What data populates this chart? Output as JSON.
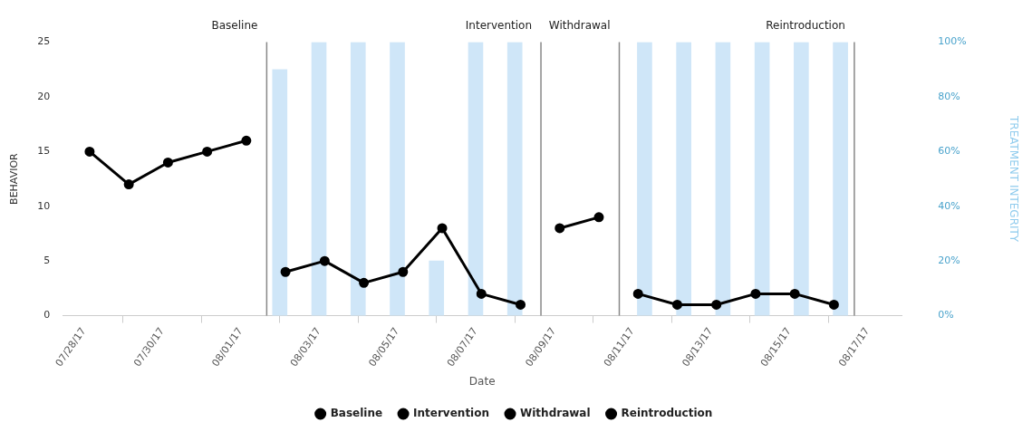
{
  "chart_data": {
    "type": "line",
    "xlabel": "Date",
    "ylabel": "BEHAVIOR",
    "y2label": "TREATMENT INTEGRITY",
    "series": [
      {
        "type": "bar",
        "axis": "y2",
        "color": "#cfe6f8",
        "x": [
          "--08-02",
          "--08-03",
          "--08-04",
          "--08-05",
          "--08-06",
          "--08-07",
          "--08-08",
          "--08-11T07:30",
          "--08-12T07:30",
          "--08-13T07:30",
          "--08-14T07:30",
          "--08-15T07:30",
          "--08-16T07:30"
        ],
        "values": [
          90,
          100,
          100,
          100,
          20,
          100,
          100,
          100,
          100,
          100,
          100,
          100,
          100
        ]
      },
      {
        "name": "Baseline",
        "color": "#000000",
        "x": [
          "--07-28T03:30",
          "--07-29T03:30",
          "--07-30T03:30",
          "--07-31T03:30",
          "--08-01T03:30"
        ],
        "values": [
          15,
          12,
          14,
          15,
          16
        ]
      },
      {
        "name": "Intervention",
        "color": "#000000",
        "x": [
          "--08-02T03:30",
          "--08-03T03:30",
          "--08-04T03:30",
          "--08-05T03:30",
          "--08-06T03:30",
          "--08-07T03:30",
          "--08-08T03:30"
        ],
        "values": [
          4,
          5,
          3,
          4,
          8,
          2,
          1
        ]
      },
      {
        "name": "Withdrawal",
        "color": "#000000",
        "x": [
          "--08-09T03:30",
          "--08-10T03:30"
        ],
        "values": [
          8,
          9
        ]
      },
      {
        "name": "Reintroduction",
        "color": "#000000",
        "x": [
          "--08-11T03:30",
          "--08-12T03:30",
          "--08-13T03:30",
          "--08-14T03:30",
          "--08-15T03:30",
          "--08-16T03:30"
        ],
        "values": [
          2,
          1,
          1,
          2,
          2,
          1
        ]
      }
    ],
    "xlim": [
      "--07-27T11:00",
      "--08-17T21:00"
    ],
    "xticks": [
      {
        "value": "--07-28",
        "label": "07/28/17"
      },
      {
        "value": "--07-30",
        "label": "07/30/17"
      },
      {
        "value": "--08-01",
        "label": "08/01/17"
      },
      {
        "value": "--08-03",
        "label": "08/03/17"
      },
      {
        "value": "--08-05",
        "label": "08/05/17"
      },
      {
        "value": "--08-07",
        "label": "08/07/17"
      },
      {
        "value": "--08-09",
        "label": "08/09/17"
      },
      {
        "value": "--08-11",
        "label": "08/11/17"
      },
      {
        "value": "--08-13",
        "label": "08/13/17"
      },
      {
        "value": "--08-15",
        "label": "08/15/17"
      },
      {
        "value": "--08-17",
        "label": "08/17/17"
      }
    ],
    "ylim": [
      0,
      25
    ],
    "yticks": [
      0,
      5,
      10,
      15,
      20,
      25
    ],
    "y2lim": [
      0,
      100
    ],
    "y2ticks": [
      {
        "value": 0,
        "label": "0%"
      },
      {
        "value": 20,
        "label": "20%"
      },
      {
        "value": 40,
        "label": "40%"
      },
      {
        "value": 60,
        "label": "60%"
      },
      {
        "value": 80,
        "label": "80%"
      },
      {
        "value": 100,
        "label": "100%"
      }
    ],
    "ref_lines": [
      {
        "axis": "x",
        "value": "--08-01T16:00",
        "label": "Baseline",
        "color": "#888888"
      },
      {
        "axis": "x",
        "value": "--08-08T16:00",
        "label": "Intervention",
        "color": "#888888"
      },
      {
        "axis": "x",
        "value": "--08-10T16:00",
        "label": "Withdrawal",
        "color": "#888888"
      },
      {
        "axis": "x",
        "value": "--08-16T16:00",
        "label": "Reintroduction",
        "color": "#888888"
      }
    ],
    "grid": false,
    "legend": "bottom",
    "marker": "circle",
    "line_style": "solid"
  }
}
